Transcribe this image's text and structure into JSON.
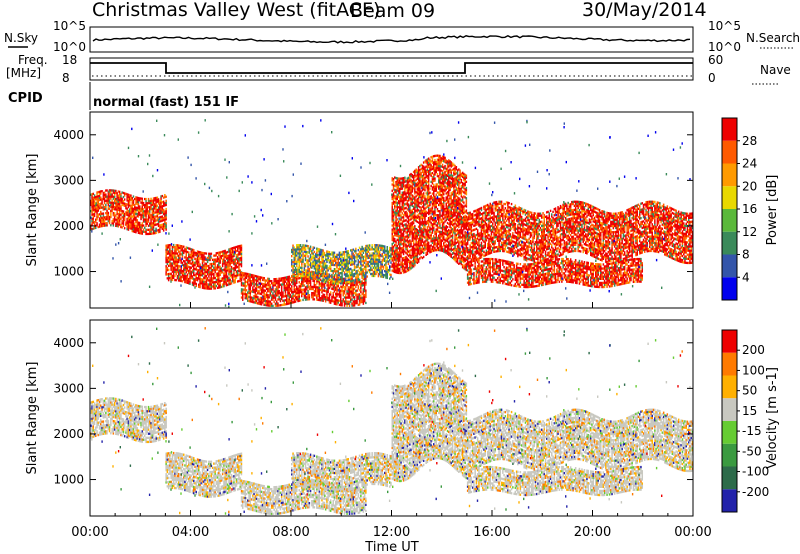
{
  "header": {
    "station": "Christmas Valley West (fitACF)",
    "beam": "Beam 09",
    "date": "30/May/2014"
  },
  "top_panels": {
    "nsky_label": "N.Sky",
    "nsearch_label": "N.Search",
    "nsky_ticks": [
      "10^5",
      "10^0"
    ],
    "freq_label": [
      "Freq.",
      "[MHz]"
    ],
    "freq_ticks": [
      "18",
      "8"
    ],
    "nave_label": "Nave",
    "nave_ticks": [
      "60",
      "0"
    ],
    "cpid_label": "CPID",
    "cpid_text": "normal (fast) 151 IF"
  },
  "chart_data": [
    {
      "type": "heatmap",
      "title": "",
      "ylabel": "Slant Range [km]",
      "xlabel": "",
      "yticks": [
        "4000",
        "3000",
        "2000",
        "1000"
      ],
      "ylim": [
        200,
        4500
      ],
      "xlim": [
        0,
        24
      ],
      "colorbar_label": "Power [dB]",
      "colorbar_ticks": [
        "28",
        "24",
        "20",
        "16",
        "12",
        "8",
        "4"
      ],
      "colors": [
        "#0000ee",
        "#3355aa",
        "#3a8a5a",
        "#5ab83a",
        "#e8d800",
        "#ff9a00",
        "#ff5a00",
        "#ee0000"
      ],
      "features": [
        {
          "t0": 0,
          "t1": 3,
          "range": [
            1900,
            2700
          ],
          "level": "20-28"
        },
        {
          "t0": 3,
          "t1": 6,
          "range": [
            700,
            1500
          ],
          "level": "24-30"
        },
        {
          "t0": 6,
          "t1": 11,
          "range": [
            300,
            900
          ],
          "level": "24-30"
        },
        {
          "t0": 8,
          "t1": 12,
          "range": [
            800,
            1500
          ],
          "level": "8-20"
        },
        {
          "t0": 12,
          "t1": 15,
          "range": [
            1200,
            3300
          ],
          "level": "12-28"
        },
        {
          "t0": 15,
          "t1": 24,
          "range": [
            1300,
            2400
          ],
          "level": "20-30"
        },
        {
          "t0": 15,
          "t1": 22,
          "range": [
            700,
            1200
          ],
          "level": "20-28"
        }
      ]
    },
    {
      "type": "heatmap",
      "title": "",
      "ylabel": "Slant Range [km]",
      "xlabel": "Time UT",
      "xticks": [
        "00:00",
        "04:00",
        "08:00",
        "12:00",
        "16:00",
        "20:00",
        "00:00"
      ],
      "yticks": [
        "4000",
        "3000",
        "2000",
        "1000"
      ],
      "ylim": [
        200,
        4500
      ],
      "xlim": [
        0,
        24
      ],
      "colorbar_label": "Velocity [m s-1]",
      "colorbar_ticks": [
        "200",
        "100",
        "50",
        "15",
        "-15",
        "-50",
        "-100",
        "-200"
      ],
      "colors": [
        "#2222aa",
        "#2d6b4a",
        "#3a9a40",
        "#66cc33",
        "#c8c8c0",
        "#ffb000",
        "#ff7a00",
        "#ee0000"
      ]
    }
  ]
}
